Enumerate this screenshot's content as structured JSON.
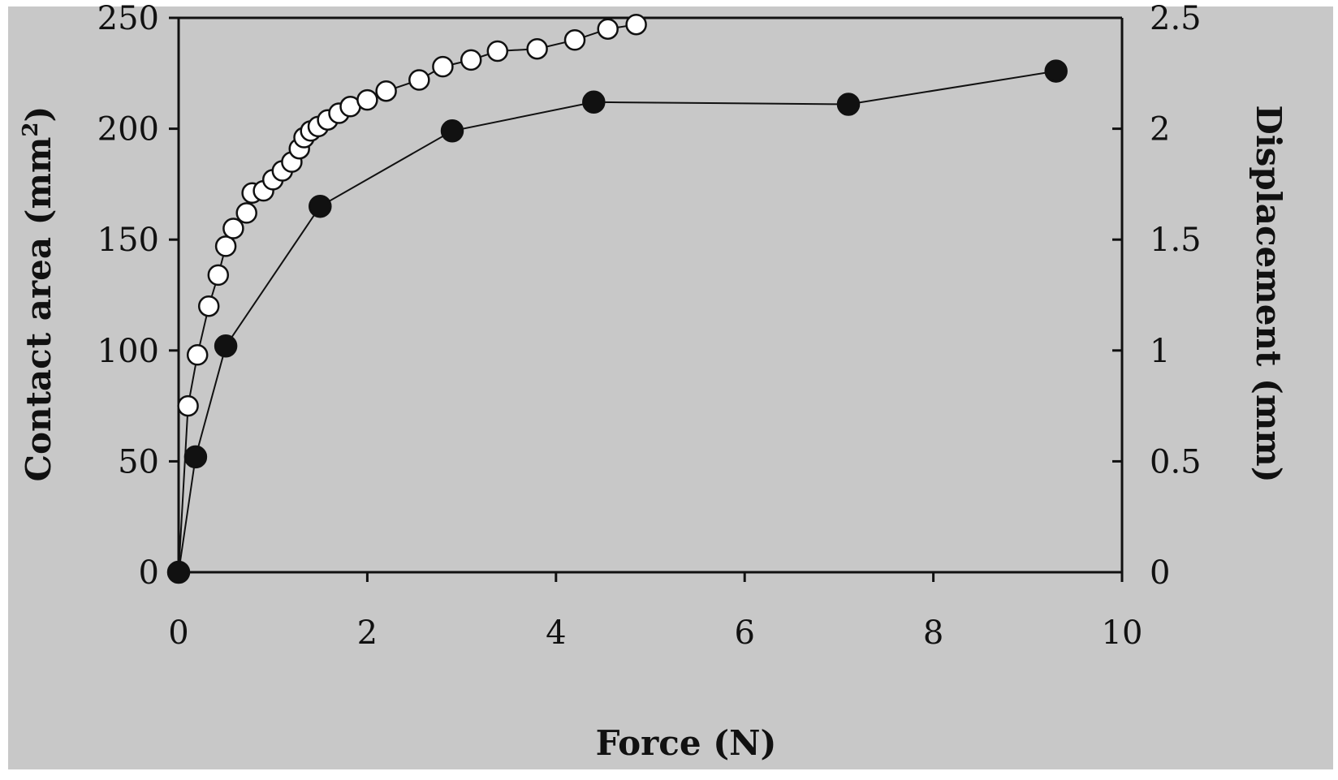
{
  "colors": {
    "plot_background": "#c8c8c8",
    "axis_color": "#111111",
    "open_marker_fill": "#ffffff",
    "filled_marker_fill": "#111111"
  },
  "chart_data": {
    "type": "scatter",
    "title": "",
    "xlabel": "Force (N)",
    "ylabel_left": {
      "text": "Contact area (mm",
      "superscript": "2",
      "suffix": ")"
    },
    "ylabel_right": "Displacement (mm)",
    "xlim": [
      0,
      10
    ],
    "ylim_left": [
      0,
      250
    ],
    "ylim_right": [
      0,
      2.5
    ],
    "x_ticks": [
      0,
      2,
      4,
      6,
      8,
      10
    ],
    "x_tick_labels": [
      "0",
      "2",
      "4",
      "6",
      "8",
      "10"
    ],
    "y_left_ticks": [
      0,
      50,
      100,
      150,
      200,
      250
    ],
    "y_left_tick_labels": [
      "0",
      "50",
      "100",
      "150",
      "200",
      "250"
    ],
    "y_right_ticks": [
      0,
      0.5,
      1,
      1.5,
      2,
      2.5
    ],
    "y_right_tick_labels": [
      "0",
      "0.5",
      "1",
      "1.5",
      "2",
      "2.5"
    ],
    "grid": false,
    "legend": "none",
    "series": [
      {
        "axis": "right",
        "marker": "open-circle",
        "line": true,
        "x": [
          0,
          0.1,
          0.2,
          0.32,
          0.42,
          0.5,
          0.58,
          0.72,
          0.78,
          0.9,
          1.0,
          1.1,
          1.2,
          1.28,
          1.33,
          1.4,
          1.48,
          1.58,
          1.7,
          1.82,
          2.0,
          2.2,
          2.55,
          2.8,
          3.1,
          3.38,
          3.8,
          4.2,
          4.55,
          4.85
        ],
        "y": [
          0,
          0.75,
          0.98,
          1.2,
          1.34,
          1.47,
          1.55,
          1.62,
          1.71,
          1.72,
          1.77,
          1.81,
          1.85,
          1.91,
          1.96,
          1.99,
          2.01,
          2.04,
          2.07,
          2.1,
          2.13,
          2.17,
          2.22,
          2.28,
          2.31,
          2.35,
          2.36,
          2.4,
          2.45,
          2.47
        ]
      },
      {
        "axis": "left",
        "marker": "filled-circle",
        "line": true,
        "x": [
          0,
          0.18,
          0.5,
          1.5,
          2.9,
          4.4,
          7.1,
          9.3
        ],
        "y": [
          0,
          52,
          102,
          165,
          199,
          212,
          211,
          226
        ]
      }
    ]
  }
}
